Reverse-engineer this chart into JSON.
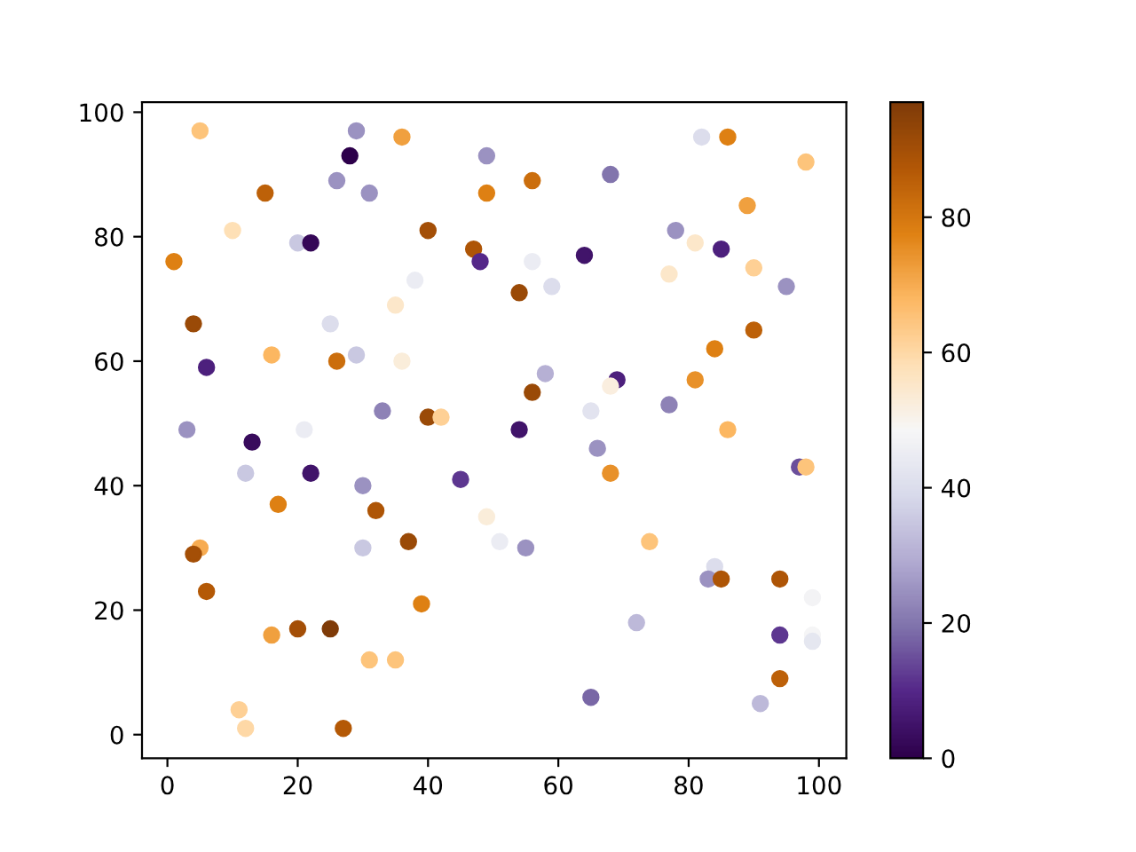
{
  "chart_data": {
    "type": "scatter",
    "marker": "circle",
    "grid": false,
    "x": [
      5,
      29,
      36,
      28,
      49,
      82,
      86,
      98,
      68,
      56,
      26,
      31,
      15,
      49,
      89,
      10,
      40,
      78,
      20,
      22,
      81,
      85,
      47,
      1,
      48,
      64,
      56,
      59,
      90,
      77,
      38,
      95,
      54,
      35,
      4,
      25,
      90,
      84,
      16,
      29,
      26,
      36,
      6,
      58,
      69,
      68,
      81,
      56,
      33,
      65,
      40,
      42,
      3,
      21,
      54,
      86,
      13,
      66,
      77,
      97,
      98,
      12,
      22,
      68,
      30,
      45,
      17,
      32,
      49,
      37,
      51,
      74,
      55,
      30,
      5,
      4,
      84,
      83,
      85,
      94,
      99,
      6,
      39,
      16,
      20,
      25,
      94,
      99,
      99,
      31,
      35,
      72,
      94,
      11,
      12,
      27,
      65,
      91
    ],
    "values": [
      97,
      97,
      96,
      93,
      93,
      96,
      96,
      92,
      90,
      89,
      89,
      87,
      87,
      87,
      85,
      81,
      81,
      81,
      79,
      79,
      79,
      78,
      78,
      76,
      76,
      77,
      76,
      72,
      75,
      74,
      73,
      72,
      71,
      69,
      66,
      66,
      65,
      62,
      61,
      61,
      60,
      60,
      59,
      58,
      57,
      56,
      57,
      55,
      52,
      52,
      51,
      51,
      49,
      49,
      49,
      49,
      47,
      46,
      53,
      43,
      43,
      42,
      42,
      42,
      40,
      41,
      37,
      36,
      35,
      31,
      31,
      31,
      30,
      30,
      30,
      29,
      27,
      25,
      25,
      25,
      22,
      23,
      21,
      16,
      17,
      17,
      16,
      16,
      15,
      12,
      12,
      18,
      9,
      4,
      1,
      1,
      6,
      5
    ],
    "cvalues": [
      65,
      25,
      72,
      0,
      25,
      40,
      78,
      65,
      20,
      82,
      25,
      25,
      85,
      78,
      72,
      58,
      90,
      25,
      35,
      2,
      55,
      8,
      88,
      78,
      10,
      5,
      45,
      40,
      62,
      55,
      45,
      25,
      92,
      55,
      92,
      40,
      85,
      78,
      68,
      35,
      82,
      53,
      8,
      30,
      8,
      52,
      75,
      92,
      22,
      42,
      92,
      62,
      25,
      45,
      5,
      68,
      3,
      25,
      22,
      15,
      65,
      35,
      5,
      75,
      25,
      12,
      78,
      88,
      53,
      92,
      45,
      65,
      25,
      35,
      70,
      90,
      40,
      25,
      88,
      88,
      47,
      87,
      78,
      72,
      90,
      97,
      12,
      48,
      43,
      65,
      65,
      32,
      85,
      62,
      60,
      87,
      18,
      32
    ],
    "clim": [
      0,
      97
    ],
    "cticks": [
      0,
      20,
      40,
      60,
      80
    ],
    "xlim": [
      -3.9,
      104.2
    ],
    "ylim": [
      -3.8,
      101.6
    ],
    "xticks": [
      0,
      20,
      40,
      60,
      80,
      100
    ],
    "yticks": [
      0,
      20,
      40,
      60,
      80,
      100
    ]
  }
}
